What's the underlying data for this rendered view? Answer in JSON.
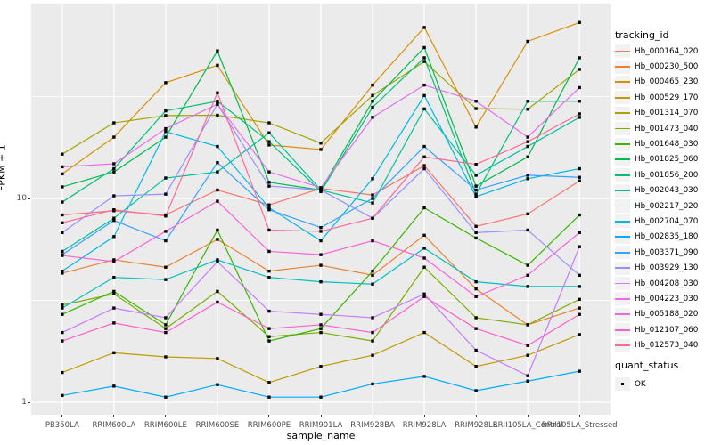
{
  "legend": {
    "tracking_title": "tracking_id",
    "quant_title": "quant_status",
    "quant_ok_label": "OK"
  },
  "chart_data": {
    "type": "line",
    "title": "",
    "xlabel": "sample_name",
    "ylabel": "FPKM + 1",
    "y_scale": "log10",
    "ylim": [
      0.88,
      85
    ],
    "grid": "white major and minor on gray panel",
    "legend_position": "right",
    "panel_bg": "#EBEBEB",
    "legend_key_bg": "#F2F2F2",
    "axis_text_color": "#4D4D4D",
    "marker": "black-square",
    "quant_status_value": "OK",
    "y_ticks": [
      {
        "label": "10",
        "value": 10
      },
      {
        "label": "1",
        "value": 1
      }
    ],
    "grid_major": [
      1,
      10
    ],
    "grid_minor": [
      3.1623,
      31.623
    ],
    "categories": [
      "PB350LA",
      "RRIM600LA",
      "RRIM600LE",
      "RRIM600SE",
      "RRIM600PE",
      "RRIM901LA",
      "RRIM928BA",
      "RRIM928LA",
      "RRIM928LE",
      "RRII105LA_Control",
      "RRII105LA_Stressed"
    ],
    "series": [
      {
        "name": "Hb_000164_020",
        "color": "#F8766D",
        "values": [
          8.3,
          8.7,
          8.3,
          11.0,
          9.3,
          11.2,
          10.4,
          14.5,
          7.3,
          8.4,
          12.2
        ]
      },
      {
        "name": "Hb_000230_500",
        "color": "#EA8331",
        "values": [
          4.3,
          5.0,
          4.6,
          6.3,
          4.4,
          4.7,
          4.2,
          6.6,
          3.6,
          2.4,
          2.9
        ]
      },
      {
        "name": "Hb_000465_230",
        "color": "#D89000",
        "values": [
          13.2,
          20.0,
          37.0,
          45.0,
          18.3,
          17.4,
          36.0,
          69.0,
          22.4,
          59.0,
          73.0
        ]
      },
      {
        "name": "Hb_000529_170",
        "color": "#C09B00",
        "values": [
          1.4,
          1.75,
          1.67,
          1.64,
          1.25,
          1.5,
          1.7,
          2.2,
          1.5,
          1.7,
          2.15
        ]
      },
      {
        "name": "Hb_001314_070",
        "color": "#A3A500",
        "values": [
          16.5,
          23.5,
          25.5,
          25.6,
          23.5,
          18.7,
          32.0,
          47.0,
          27.6,
          27.4,
          43.0
        ]
      },
      {
        "name": "Hb_001473_040",
        "color": "#7CAE00",
        "values": [
          3.0,
          3.4,
          2.3,
          3.5,
          2.1,
          2.2,
          2.0,
          4.6,
          2.6,
          2.4,
          3.2
        ]
      },
      {
        "name": "Hb_001648_030",
        "color": "#39B600",
        "values": [
          2.7,
          3.5,
          2.4,
          7.0,
          2.0,
          2.3,
          4.4,
          9.0,
          6.4,
          4.7,
          8.3
        ]
      },
      {
        "name": "Hb_001825_060",
        "color": "#00BB4E",
        "values": [
          11.4,
          13.5,
          20.0,
          53.0,
          12.0,
          11.0,
          30.0,
          55.0,
          11.5,
          16.0,
          49.0
        ]
      },
      {
        "name": "Hb_001856_200",
        "color": "#00C079",
        "values": [
          9.6,
          14.0,
          26.9,
          30.0,
          19.0,
          10.8,
          28.0,
          49.0,
          10.5,
          30.0,
          30.0
        ]
      },
      {
        "name": "Hb_002043_030",
        "color": "#00C19C",
        "values": [
          5.5,
          8.0,
          12.6,
          13.5,
          21.0,
          11.0,
          9.5,
          27.5,
          13.0,
          18.0,
          25.0
        ]
      },
      {
        "name": "Hb_002217_020",
        "color": "#00BFC4",
        "values": [
          2.9,
          4.1,
          4.0,
          5.0,
          4.1,
          3.9,
          3.8,
          5.7,
          3.9,
          3.7,
          3.7
        ]
      },
      {
        "name": "Hb_002704_070",
        "color": "#00B8E5",
        "values": [
          4.4,
          6.5,
          21.3,
          18.0,
          9.0,
          6.2,
          12.5,
          32.0,
          10.2,
          12.5,
          14.0
        ]
      },
      {
        "name": "Hb_002835_180",
        "color": "#00ACFC",
        "values": [
          1.08,
          1.2,
          1.06,
          1.22,
          1.06,
          1.06,
          1.23,
          1.34,
          1.14,
          1.27,
          1.42
        ]
      },
      {
        "name": "Hb_003371_090",
        "color": "#35A2FF",
        "values": [
          5.3,
          7.8,
          6.2,
          15.0,
          8.8,
          7.2,
          10.0,
          18.0,
          11.0,
          13.0,
          12.7
        ]
      },
      {
        "name": "Hb_003929_130",
        "color": "#9590FF",
        "values": [
          6.8,
          10.3,
          10.5,
          29.0,
          11.5,
          11.0,
          8.0,
          14.0,
          6.8,
          7.0,
          4.2
        ]
      },
      {
        "name": "Hb_004208_030",
        "color": "#C77CFF",
        "values": [
          2.2,
          2.9,
          2.6,
          4.9,
          2.8,
          2.7,
          2.6,
          3.4,
          1.8,
          1.35,
          5.8
        ]
      },
      {
        "name": "Hb_004223_030",
        "color": "#E76BF3",
        "values": [
          14.3,
          14.8,
          22.0,
          29.0,
          13.5,
          11.3,
          25.0,
          36.0,
          30.0,
          20.0,
          35.0
        ]
      },
      {
        "name": "Hb_005188_020",
        "color": "#FA62DB",
        "values": [
          5.25,
          4.9,
          6.9,
          9.7,
          5.5,
          5.3,
          6.2,
          5.1,
          3.3,
          4.2,
          6.8
        ]
      },
      {
        "name": "Hb_012107_060",
        "color": "#FF61CC",
        "values": [
          2.0,
          2.45,
          2.2,
          3.1,
          2.3,
          2.4,
          2.2,
          3.3,
          2.3,
          1.9,
          2.7
        ]
      },
      {
        "name": "Hb_012573_040",
        "color": "#FF6A98",
        "values": [
          7.6,
          8.8,
          8.2,
          33.0,
          7.0,
          6.9,
          8.0,
          16.0,
          14.7,
          19.0,
          26.0
        ]
      }
    ]
  }
}
